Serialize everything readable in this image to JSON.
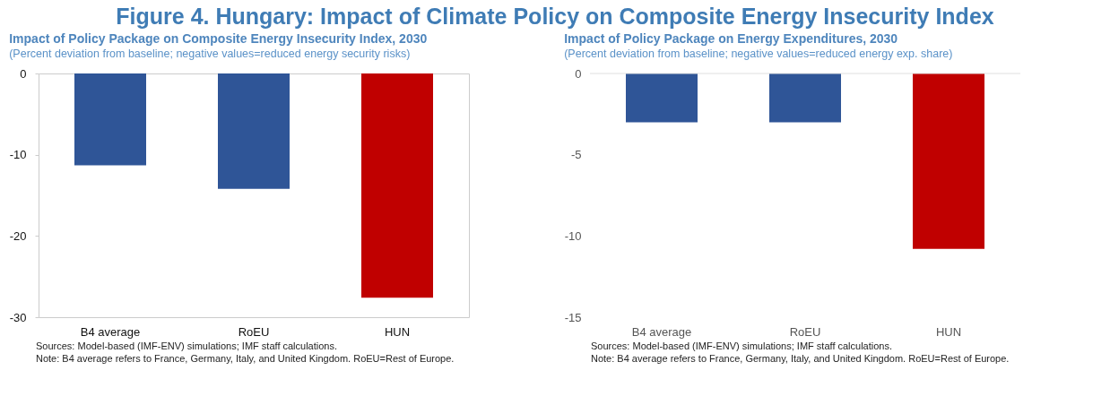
{
  "chart_data": [
    {
      "type": "other",
      "title": "Figure 4. Hungary: Impact of Climate Policy on Composite Energy Insecurity Index"
    },
    {
      "type": "bar",
      "title": "Impact of Policy Package on Composite Energy Insecurity Index, 2030",
      "subtitle": "(Percent deviation from baseline; negative values=reduced energy security risks)",
      "categories": [
        "B4 average",
        "RoEU",
        "HUN"
      ],
      "values": [
        -11.3,
        -14.2,
        -27.6
      ],
      "colors": [
        "#2f5597",
        "#2f5597",
        "#c00000"
      ],
      "ylim": [
        -30,
        0
      ],
      "yticks": [
        0,
        -10,
        -20,
        -30
      ],
      "annotations": [
        "Sources: Model-based (IMF-ENV) simulations; IMF staff calculations.",
        "Note: B4 average refers to France, Germany, Italy, and United Kingdom. RoEU=Rest of Europe."
      ]
    },
    {
      "type": "bar",
      "title": "Impact of Policy Package on Energy Expenditures, 2030",
      "subtitle": "(Percent deviation from baseline; negative values=reduced energy exp. share)",
      "categories": [
        "B4 average",
        "RoEU",
        "HUN"
      ],
      "values": [
        -3.0,
        -3.0,
        -10.8
      ],
      "colors": [
        "#2f5597",
        "#2f5597",
        "#c00000"
      ],
      "ylim": [
        -15,
        0
      ],
      "yticks": [
        0,
        -5,
        -10,
        -15
      ],
      "annotations": [
        "Sources: Model-based (IMF-ENV) simulations; IMF staff calculations.",
        "Note: B4 average refers to France, Germany, Italy, and United Kingdom. RoEU=Rest of Europe."
      ]
    }
  ]
}
